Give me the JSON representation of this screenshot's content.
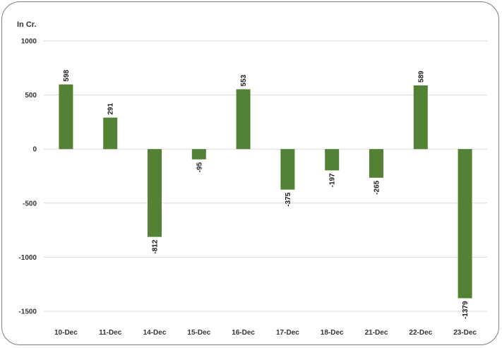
{
  "chart_data": {
    "type": "bar",
    "title": "",
    "unit_label": "In Cr.",
    "xlabel": "",
    "ylabel": "",
    "categories": [
      "10-Dec",
      "11-Dec",
      "14-Dec",
      "15-Dec",
      "16-Dec",
      "17-Dec",
      "18-Dec",
      "21-Dec",
      "22-Dec",
      "23-Dec"
    ],
    "values": [
      598,
      291,
      -812,
      -95,
      553,
      -375,
      -197,
      -265,
      589,
      -1379
    ],
    "data_labels": [
      "598",
      "291",
      "-812",
      "-95",
      "553",
      "-375",
      "-197",
      "-265",
      "589",
      "-1379"
    ],
    "yticks": [
      1000,
      500,
      0,
      -500,
      -1000,
      -1500
    ],
    "ytick_labels": [
      "1000",
      "500",
      "0",
      "-500",
      "-1000",
      "-1500"
    ],
    "ylim": [
      -1500,
      1000
    ],
    "grid": true,
    "legend": "none",
    "bar_color": "#538135"
  }
}
